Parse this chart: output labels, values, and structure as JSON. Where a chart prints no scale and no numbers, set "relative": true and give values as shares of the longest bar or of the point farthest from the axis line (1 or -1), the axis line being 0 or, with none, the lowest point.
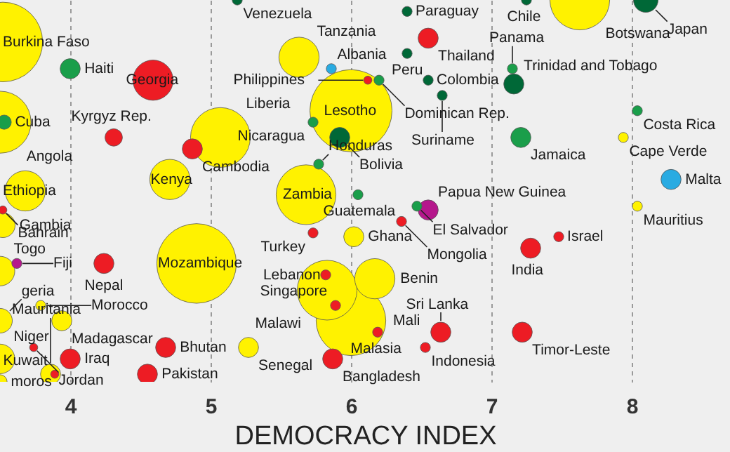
{
  "chart_data": {
    "type": "bubble",
    "xlabel": "DEMOCRACY INDEX",
    "relative": true,
    "xlim": [
      3.5,
      8.7
    ],
    "xticks": [
      4,
      5,
      6,
      7,
      8
    ],
    "grid": "x",
    "x": [
      3.52,
      5.19,
      4.0,
      4.59,
      5.63,
      5.86,
      6.12,
      6.2,
      6.4,
      6.55,
      6.4,
      6.55,
      6.65,
      7.15,
      7.16,
      7.25,
      7.63,
      8.1,
      6.0,
      5.73,
      5.92,
      3.5,
      3.53,
      4.31,
      4.87,
      5.07,
      4.71,
      5.77,
      5.68,
      3.68,
      3.52,
      3.52,
      8.04,
      7.21,
      7.94,
      8.28,
      8.04,
      6.05,
      6.47,
      6.55,
      6.36,
      6.02,
      7.48,
      7.28,
      6.17,
      5.73,
      5.83,
      5.82,
      5.89,
      6.0,
      6.19,
      5.87,
      5.27,
      4.68,
      4.55,
      4.9,
      4.24,
      3.62,
      3.5,
      3.79,
      3.94,
      3.5,
      3.74,
      3.5,
      4.0,
      3.86,
      3.89,
      3.5,
      6.64,
      6.53,
      7.22
    ],
    "values": [
      0.89,
      1.0,
      0.82,
      0.79,
      0.85,
      0.82,
      0.79,
      0.79,
      0.97,
      0.9,
      0.86,
      0.79,
      0.75,
      0.82,
      0.78,
      1.0,
      1.0,
      1.0,
      0.71,
      0.68,
      0.64,
      0.68,
      0.68,
      0.64,
      0.61,
      0.64,
      0.53,
      0.57,
      0.49,
      0.5,
      0.45,
      0.41,
      0.71,
      0.64,
      0.64,
      0.53,
      0.46,
      0.49,
      0.46,
      0.45,
      0.42,
      0.38,
      0.38,
      0.35,
      0.27,
      0.39,
      0.24,
      0.28,
      0.2,
      0.16,
      0.13,
      0.06,
      0.09,
      0.09,
      0.02,
      0.31,
      0.31,
      0.31,
      0.29,
      0.2,
      0.16,
      0.16,
      0.09,
      0.06,
      0.06,
      0.02,
      0.02,
      0.0,
      0.13,
      0.09,
      0.13
    ],
    "sizes": [
      0.94,
      0.015,
      0.06,
      0.24,
      0.24,
      0.015,
      0.01,
      0.015,
      0.015,
      0.06,
      0.015,
      0.015,
      0.015,
      0.015,
      0.06,
      0.015,
      0.53,
      0.09,
      1,
      0.015,
      0.06,
      0.57,
      0.03,
      0.045,
      0.06,
      0.53,
      0.24,
      0.015,
      0.53,
      0.24,
      0.01,
      0.09,
      0.015,
      0.06,
      0.015,
      0.06,
      0.015,
      0.015,
      0.015,
      0.06,
      0.015,
      0.06,
      0.015,
      0.06,
      0.24,
      0.015,
      0.53,
      0.015,
      0.015,
      0.72,
      0.015,
      0.06,
      0.06,
      0.06,
      0.06,
      0.94,
      0.06,
      0.015,
      0.13,
      0.015,
      0.06,
      0.09,
      0.01,
      0.13,
      0.06,
      0.06,
      0.01,
      0.03,
      0.06,
      0.015,
      0.06
    ],
    "colors": [
      "#fff200",
      "#006837",
      "#1a9e4a",
      "#ed1c24",
      "#fff200",
      "#29abe2",
      "#ed1c24",
      "#1a9e4a",
      "#006837",
      "#ed1c24",
      "#006837",
      "#006837",
      "#006837",
      "#1a9e4a",
      "#006837",
      "#006837",
      "#fff200",
      "#006837",
      "#fff200",
      "#1a9e4a",
      "#006837",
      "#fff200",
      "#1a9e4a",
      "#ed1c24",
      "#ed1c24",
      "#fff200",
      "#fff200",
      "#1a9e4a",
      "#fff200",
      "#fff200",
      "#ed1c24",
      "#fff200",
      "#1a9e4a",
      "#1a9e4a",
      "#fff200",
      "#29abe2",
      "#fff200",
      "#1a9e4a",
      "#1a9e4a",
      "#b5178c",
      "#ed1c24",
      "#fff200",
      "#ed1c24",
      "#ed1c24",
      "#fff200",
      "#ed1c24",
      "#fff200",
      "#ed1c24",
      "#ed1c24",
      "#fff200",
      "#ed1c24",
      "#ed1c24",
      "#fff200",
      "#ed1c24",
      "#ed1c24",
      "#fff200",
      "#ed1c24",
      "#b5178c",
      "#fff200",
      "#fff200",
      "#fff200",
      "#fff200",
      "#ed1c24",
      "#fff200",
      "#ed1c24",
      "#fff200",
      "#ed1c24",
      "#fff200",
      "#ed1c24",
      "#ed1c24",
      "#ed1c24"
    ],
    "annotations": [
      {
        "text": "Burkina Faso",
        "x": 3.52,
        "y": 0.89
      },
      {
        "text": "Venezuela",
        "x": 5.19,
        "y": 1.0
      },
      {
        "text": "Haiti",
        "x": 4.0,
        "y": 0.82
      },
      {
        "text": "Georgia",
        "x": 4.59,
        "y": 0.79
      },
      {
        "text": "Tanzania",
        "x": 5.63,
        "y": 0.85
      },
      {
        "text": "Albania",
        "x": 5.86,
        "y": 0.82
      },
      {
        "text": "Philippines",
        "x": 6.12,
        "y": 0.79
      },
      {
        "text": "Dominican Rep.",
        "x": 6.2,
        "y": 0.79
      },
      {
        "text": "Paraguay",
        "x": 6.4,
        "y": 0.97
      },
      {
        "text": "Thailand",
        "x": 6.55,
        "y": 0.9
      },
      {
        "text": "Peru",
        "x": 6.4,
        "y": 0.86
      },
      {
        "text": "Colombia",
        "x": 6.55,
        "y": 0.79
      },
      {
        "text": "Suriname",
        "x": 6.65,
        "y": 0.75
      },
      {
        "text": "Panama",
        "x": 7.15,
        "y": 0.82
      },
      {
        "text": "Trinidad and Tobago",
        "x": 7.16,
        "y": 0.78
      },
      {
        "text": "Chile",
        "x": 7.25,
        "y": 1.0
      },
      {
        "text": "Botswana",
        "x": 7.63,
        "y": 1.0
      },
      {
        "text": "Japan",
        "x": 8.1,
        "y": 1.0
      },
      {
        "text": "Lesotho",
        "x": 6.0,
        "y": 0.71
      },
      {
        "text": "Nicaragua",
        "x": 5.73,
        "y": 0.68
      },
      {
        "text": "Bolivia",
        "x": 5.92,
        "y": 0.64
      },
      {
        "text": "Angola",
        "x": 3.5,
        "y": 0.68
      },
      {
        "text": "Cuba",
        "x": 3.53,
        "y": 0.68
      },
      {
        "text": "Kyrgyz Rep.",
        "x": 4.31,
        "y": 0.64
      },
      {
        "text": "Cambodia",
        "x": 4.87,
        "y": 0.61
      },
      {
        "text": "Liberia",
        "x": 5.07,
        "y": 0.64
      },
      {
        "text": "Kenya",
        "x": 4.71,
        "y": 0.53
      },
      {
        "text": "Honduras",
        "x": 5.77,
        "y": 0.57
      },
      {
        "text": "Zambia",
        "x": 5.68,
        "y": 0.49
      },
      {
        "text": "Ethiopia",
        "x": 3.68,
        "y": 0.5
      },
      {
        "text": "Bahrain",
        "x": 3.52,
        "y": 0.45
      },
      {
        "text": "Gambia",
        "x": 3.52,
        "y": 0.41
      },
      {
        "text": "Costa Rica",
        "x": 8.04,
        "y": 0.71
      },
      {
        "text": "Jamaica",
        "x": 7.21,
        "y": 0.64
      },
      {
        "text": "Cape Verde",
        "x": 7.94,
        "y": 0.64
      },
      {
        "text": "Malta",
        "x": 8.28,
        "y": 0.53
      },
      {
        "text": "Mauritius",
        "x": 8.04,
        "y": 0.46
      },
      {
        "text": "Guatemala",
        "x": 6.05,
        "y": 0.49
      },
      {
        "text": "El Salvador",
        "x": 6.47,
        "y": 0.46
      },
      {
        "text": "Papua New Guinea",
        "x": 6.55,
        "y": 0.45
      },
      {
        "text": "Mongolia",
        "x": 6.36,
        "y": 0.42
      },
      {
        "text": "Ghana",
        "x": 6.02,
        "y": 0.38
      },
      {
        "text": "Israel",
        "x": 7.48,
        "y": 0.38
      },
      {
        "text": "India",
        "x": 7.28,
        "y": 0.35
      },
      {
        "text": "Benin",
        "x": 6.17,
        "y": 0.27
      },
      {
        "text": "Turkey",
        "x": 5.73,
        "y": 0.39
      },
      {
        "text": "Malawi",
        "x": 5.83,
        "y": 0.24
      },
      {
        "text": "Lebanon",
        "x": 5.82,
        "y": 0.28
      },
      {
        "text": "Singapore",
        "x": 5.89,
        "y": 0.2
      },
      {
        "text": "Mali",
        "x": 6.0,
        "y": 0.16
      },
      {
        "text": "Malasia",
        "x": 6.19,
        "y": 0.13
      },
      {
        "text": "Bangladesh",
        "x": 5.87,
        "y": 0.06
      },
      {
        "text": "Senegal",
        "x": 5.27,
        "y": 0.09
      },
      {
        "text": "Bhutan",
        "x": 4.68,
        "y": 0.09
      },
      {
        "text": "Pakistan",
        "x": 4.55,
        "y": 0.02
      },
      {
        "text": "Mozambique",
        "x": 4.9,
        "y": 0.31
      },
      {
        "text": "Nepal",
        "x": 4.24,
        "y": 0.31
      },
      {
        "text": "Fiji",
        "x": 3.62,
        "y": 0.31
      },
      {
        "text": "Togo",
        "x": 3.5,
        "y": 0.29
      },
      {
        "text": "Morocco",
        "x": 3.79,
        "y": 0.2
      },
      {
        "text": "Madagascar",
        "x": 3.94,
        "y": 0.16
      },
      {
        "text": "geria",
        "x": 3.5,
        "y": 0.16
      },
      {
        "text": "Jordan",
        "x": 3.74,
        "y": 0.09
      },
      {
        "text": "Niger",
        "x": 3.5,
        "y": 0.06
      },
      {
        "text": "Iraq",
        "x": 4.0,
        "y": 0.06
      },
      {
        "text": "Mauritania",
        "x": 3.86,
        "y": 0.02
      },
      {
        "text": "Kuwait",
        "x": 3.89,
        "y": 0.02
      },
      {
        "text": "moros",
        "x": 3.5,
        "y": 0.0
      },
      {
        "text": "Sri Lanka",
        "x": 6.64,
        "y": 0.13
      },
      {
        "text": "Indonesia",
        "x": 6.53,
        "y": 0.09
      },
      {
        "text": "Timor-Leste",
        "x": 7.22,
        "y": 0.13
      }
    ]
  }
}
